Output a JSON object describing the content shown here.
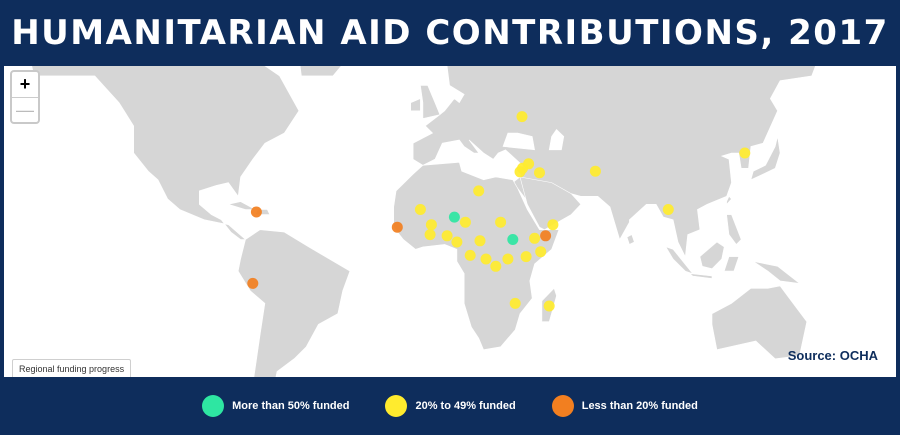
{
  "title": "HUMANITARIAN AID CONTRIBUTIONS, 2017",
  "map": {
    "zoom_in_label": "+",
    "zoom_out_label": "—",
    "source": "Source: OCHA",
    "tab_label": "Regional funding progress",
    "land_color": "#d6d6d6",
    "ocean_color": "#ffffff"
  },
  "legend": [
    {
      "label": "More than 50% funded",
      "color": "#2ee6a2",
      "icon": "circle-marker"
    },
    {
      "label": "20% to 49% funded",
      "color": "#ffeb2e",
      "icon": "circle-marker"
    },
    {
      "label": "Less than 20% funded",
      "color": "#f27f20",
      "icon": "circle-marker"
    }
  ],
  "markers": [
    {
      "lon": 35.8,
      "lat": 50.5,
      "category": 1
    },
    {
      "lon": 38.5,
      "lat": 36.5,
      "category": 1
    },
    {
      "lon": 36.0,
      "lat": 35.0,
      "category": 1
    },
    {
      "lon": 35.0,
      "lat": 33.8,
      "category": 1
    },
    {
      "lon": 43.0,
      "lat": 33.5,
      "category": 1
    },
    {
      "lon": 66.0,
      "lat": 34.0,
      "category": 1
    },
    {
      "lon": 96.0,
      "lat": 20.0,
      "category": 1
    },
    {
      "lon": 127.5,
      "lat": 40.0,
      "category": 1
    },
    {
      "lon": 18.0,
      "lat": 27.0,
      "category": 1
    },
    {
      "lon": -6.0,
      "lat": 20.0,
      "category": 1
    },
    {
      "lon": 8.0,
      "lat": 17.0,
      "category": 0
    },
    {
      "lon": -1.5,
      "lat": 14.0,
      "category": 1
    },
    {
      "lon": 12.5,
      "lat": 15.0,
      "category": 1
    },
    {
      "lon": 27.0,
      "lat": 15.0,
      "category": 1
    },
    {
      "lon": -2.0,
      "lat": 10.0,
      "category": 1
    },
    {
      "lon": 5.0,
      "lat": 9.5,
      "category": 1
    },
    {
      "lon": 32.0,
      "lat": 8.0,
      "category": 0
    },
    {
      "lon": 45.5,
      "lat": 9.5,
      "category": 2
    },
    {
      "lon": 48.5,
      "lat": 14.0,
      "category": 1
    },
    {
      "lon": 41.0,
      "lat": 8.5,
      "category": 1
    },
    {
      "lon": -15.5,
      "lat": 13.0,
      "category": 2
    },
    {
      "lon": 9.0,
      "lat": 7.0,
      "category": 1
    },
    {
      "lon": 18.5,
      "lat": 7.5,
      "category": 1
    },
    {
      "lon": 21.0,
      "lat": 0.0,
      "category": 1
    },
    {
      "lon": 30.0,
      "lat": 0.0,
      "category": 1
    },
    {
      "lon": 14.5,
      "lat": 1.5,
      "category": 1
    },
    {
      "lon": 25.0,
      "lat": -3.0,
      "category": 1
    },
    {
      "lon": 37.5,
      "lat": 1.0,
      "category": 1
    },
    {
      "lon": 43.5,
      "lat": 3.0,
      "category": 1
    },
    {
      "lon": 33.0,
      "lat": -18.0,
      "category": 1
    },
    {
      "lon": 47.0,
      "lat": -19.0,
      "category": 1
    },
    {
      "lon": -73.5,
      "lat": 19.0,
      "category": 2
    },
    {
      "lon": -75.0,
      "lat": -10.0,
      "category": 2
    }
  ]
}
